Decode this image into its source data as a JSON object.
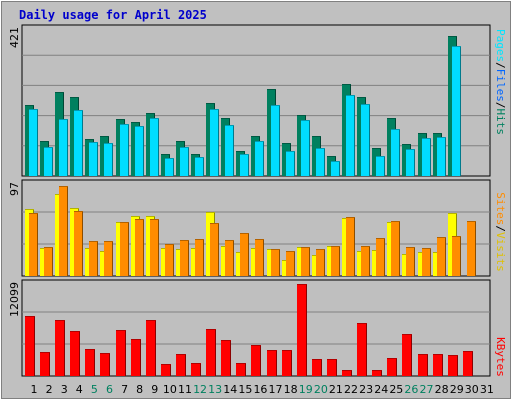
{
  "title": "Daily usage for April 2025",
  "days": [
    "1",
    "2",
    "3",
    "4",
    "5",
    "6",
    "7",
    "8",
    "9",
    "10",
    "11",
    "12",
    "13",
    "14",
    "15",
    "16",
    "17",
    "18",
    "19",
    "20",
    "21",
    "22",
    "23",
    "24",
    "25",
    "26",
    "27",
    "28",
    "29",
    "30",
    "31"
  ],
  "weekend_days": [
    "5",
    "6",
    "12",
    "13",
    "19",
    "20",
    "26",
    "27"
  ],
  "colors": {
    "background": "#C0C0C0",
    "plot_background": "#BFBFBF",
    "title": "#0000CC",
    "hits": "#00805F",
    "files": "#00DDFF",
    "pages": "#00E5FF",
    "visits": "#FFFF00",
    "sites": "#FF8C00",
    "kbytes": "#FF0000",
    "weekend_label": "#00805F",
    "weekday_label": "#000000"
  },
  "chart_data": [
    {
      "type": "bar",
      "panel": "top",
      "ymax_label": "421",
      "ylim": [
        0,
        421
      ],
      "legend_labels": {
        "hits": "Hits",
        "files": "Files",
        "pages": "Pages",
        "sep": "/"
      },
      "series": [
        {
          "name": "Hits",
          "values": [
            202,
            100,
            240,
            226,
            106,
            114,
            163,
            154,
            180,
            63,
            101,
            64,
            208,
            165,
            71,
            115,
            248,
            95,
            175,
            115,
            56,
            264,
            225,
            81,
            166,
            91,
            124,
            124,
            400
          ]
        },
        {
          "name": "Files",
          "values": [
            193,
            84,
            164,
            189,
            96,
            94,
            148,
            142,
            165,
            51,
            82,
            54,
            193,
            146,
            62,
            101,
            203,
            73,
            159,
            81,
            42,
            231,
            206,
            58,
            134,
            78,
            108,
            112,
            373
          ]
        }
      ]
    },
    {
      "type": "bar",
      "panel": "middle",
      "ymax_label": "97",
      "ylim": [
        0,
        97
      ],
      "legend_labels": {
        "visits": "Visits",
        "sites": "Sites",
        "sep": "/"
      },
      "series": [
        {
          "name": "Visits",
          "values": [
            71,
            30,
            86,
            72,
            29,
            26,
            57,
            63,
            63,
            29,
            28,
            30,
            67,
            32,
            25,
            29,
            28,
            17,
            31,
            22,
            32,
            61,
            26,
            27,
            57,
            23,
            25,
            25,
            66
          ]
        },
        {
          "name": "Sites",
          "values": [
            66,
            31,
            95,
            69,
            37,
            37,
            57,
            60,
            60,
            34,
            38,
            39,
            56,
            38,
            45,
            39,
            28,
            26,
            31,
            28,
            32,
            62,
            32,
            40,
            58,
            31,
            29,
            41,
            42,
            58
          ]
        }
      ]
    },
    {
      "type": "bar",
      "panel": "bottom",
      "ymax_label": "12099",
      "ylim": [
        0,
        12099
      ],
      "legend_labels": {
        "kbytes": "KBytes"
      },
      "series": [
        {
          "name": "KBytes",
          "values": [
            7872,
            3213,
            7317,
            5898,
            3612,
            3007,
            6050,
            4850,
            7385,
            1607,
            2856,
            1695,
            6207,
            4688,
            1759,
            4128,
            3369,
            3393,
            12099,
            2229,
            2276,
            728,
            7018,
            787,
            2383,
            5555,
            2930,
            2834,
            2735,
            3245
          ]
        }
      ]
    }
  ]
}
